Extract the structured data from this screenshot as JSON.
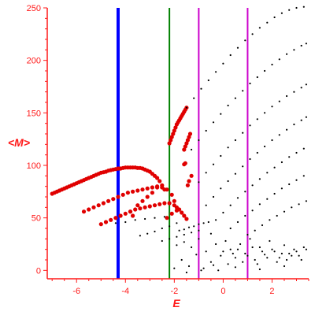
{
  "chart_data": {
    "type": "scatter",
    "title": "",
    "xlabel": "E",
    "ylabel": "<M>",
    "xlim": [
      -7.2,
      3.5
    ],
    "ylim": [
      -8,
      250
    ],
    "xticks": [
      -6,
      -4,
      -2,
      0,
      2
    ],
    "yticks": [
      0,
      50,
      100,
      150,
      200,
      250
    ],
    "x_tick_labels": [
      "-6",
      "-4",
      "-2",
      "0",
      "2"
    ],
    "y_tick_labels": [
      "0",
      "50",
      "100",
      "150",
      "200",
      "250"
    ],
    "grid": false,
    "legend": "none",
    "axis_color": "#ff1a1a",
    "vertical_lines": [
      {
        "x": -4.3,
        "color": "#0000ff"
      },
      {
        "x": -2.2,
        "color": "#008000"
      },
      {
        "x": -1.0,
        "color": "#cc00cc"
      },
      {
        "x": 1.0,
        "color": "#cc00cc"
      }
    ],
    "series": [
      {
        "color": "#e00000",
        "points": [
          [
            -7.0,
            73
          ],
          [
            -6.9,
            74
          ],
          [
            -6.8,
            75
          ],
          [
            -6.7,
            76
          ],
          [
            -6.6,
            77
          ],
          [
            -6.5,
            78
          ],
          [
            -6.4,
            79
          ],
          [
            -6.3,
            80
          ],
          [
            -6.2,
            81
          ],
          [
            -6.1,
            82
          ],
          [
            -6.0,
            83
          ],
          [
            -5.9,
            84
          ],
          [
            -5.8,
            85
          ],
          [
            -5.7,
            86
          ],
          [
            -5.6,
            87
          ],
          [
            -5.5,
            88
          ],
          [
            -5.4,
            89
          ],
          [
            -5.3,
            90
          ],
          [
            -5.2,
            91
          ],
          [
            -5.1,
            92
          ],
          [
            -5.0,
            93
          ],
          [
            -4.9,
            93.5
          ],
          [
            -4.8,
            94
          ],
          [
            -4.7,
            95
          ],
          [
            -4.6,
            95.5
          ],
          [
            -4.5,
            96
          ],
          [
            -4.4,
            96.5
          ],
          [
            -4.3,
            97
          ],
          [
            -4.2,
            97
          ],
          [
            -4.1,
            97.5
          ],
          [
            -4.0,
            98
          ],
          [
            -3.9,
            98
          ],
          [
            -3.8,
            98
          ],
          [
            -3.7,
            98
          ],
          [
            -3.6,
            98
          ],
          [
            -3.5,
            97.5
          ],
          [
            -3.4,
            97.5
          ],
          [
            -3.3,
            97
          ],
          [
            -3.2,
            96
          ],
          [
            -3.1,
            95
          ],
          [
            -3.0,
            94
          ],
          [
            -2.9,
            92
          ],
          [
            -2.8,
            90
          ],
          [
            -2.7,
            88
          ],
          [
            -2.6,
            85
          ],
          [
            -2.5,
            81
          ],
          [
            -2.4,
            77
          ],
          [
            -5.7,
            56
          ],
          [
            -5.5,
            58
          ],
          [
            -5.3,
            60
          ],
          [
            -5.1,
            62
          ],
          [
            -4.9,
            64
          ],
          [
            -4.7,
            66
          ],
          [
            -4.5,
            68
          ],
          [
            -4.3,
            70
          ],
          [
            -4.1,
            72
          ],
          [
            -3.9,
            74
          ],
          [
            -3.7,
            75
          ],
          [
            -3.5,
            76
          ],
          [
            -3.3,
            77
          ],
          [
            -3.1,
            78
          ],
          [
            -2.9,
            79
          ],
          [
            -2.7,
            79
          ],
          [
            -2.5,
            79
          ],
          [
            -2.3,
            77
          ],
          [
            -2.1,
            72
          ],
          [
            -2.0,
            66
          ],
          [
            -1.9,
            60
          ],
          [
            -5.0,
            44
          ],
          [
            -4.8,
            46
          ],
          [
            -4.6,
            48
          ],
          [
            -4.4,
            50
          ],
          [
            -4.2,
            52
          ],
          [
            -4.0,
            54
          ],
          [
            -3.8,
            56
          ],
          [
            -3.6,
            58
          ],
          [
            -3.4,
            59
          ],
          [
            -3.2,
            60
          ],
          [
            -3.0,
            61
          ],
          [
            -2.8,
            62
          ],
          [
            -2.6,
            63
          ],
          [
            -2.4,
            64
          ],
          [
            -2.2,
            64
          ],
          [
            -2.0,
            62
          ],
          [
            -1.8,
            58
          ],
          [
            -1.7,
            55
          ],
          [
            -1.6,
            52
          ],
          [
            -1.5,
            49
          ],
          [
            -3.5,
            62
          ],
          [
            -3.3,
            66
          ],
          [
            -3.1,
            70
          ],
          [
            -2.9,
            74
          ],
          [
            -2.7,
            80
          ],
          [
            -3.8,
            56
          ],
          [
            -3.7,
            52
          ],
          [
            -2.3,
            50
          ],
          [
            -2.1,
            54
          ],
          [
            -1.9,
            57
          ],
          [
            -2.2,
            121
          ],
          [
            -2.15,
            124
          ],
          [
            -2.1,
            127
          ],
          [
            -2.05,
            130
          ],
          [
            -2.0,
            133
          ],
          [
            -1.95,
            136
          ],
          [
            -1.9,
            139
          ],
          [
            -1.85,
            141
          ],
          [
            -1.8,
            143
          ],
          [
            -1.75,
            145
          ],
          [
            -1.7,
            147
          ],
          [
            -1.65,
            149
          ],
          [
            -1.6,
            151
          ],
          [
            -1.55,
            153
          ],
          [
            -1.5,
            155
          ],
          [
            -1.6,
            115
          ],
          [
            -1.55,
            118
          ],
          [
            -1.5,
            121
          ],
          [
            -1.45,
            124
          ],
          [
            -1.4,
            127
          ],
          [
            -1.35,
            130
          ],
          [
            -1.6,
            101
          ],
          [
            -1.55,
            102
          ],
          [
            -1.45,
            81
          ],
          [
            -1.4,
            85
          ],
          [
            -1.3,
            90
          ]
        ]
      },
      {
        "color": "#000000",
        "points": [
          [
            -1.5,
            155
          ],
          [
            -1.2,
            164
          ],
          [
            -0.9,
            173
          ],
          [
            -0.6,
            181
          ],
          [
            -0.3,
            189
          ],
          [
            0.0,
            197
          ],
          [
            0.3,
            205
          ],
          [
            0.6,
            212
          ],
          [
            0.9,
            219
          ],
          [
            1.2,
            225
          ],
          [
            1.5,
            231
          ],
          [
            1.8,
            236
          ],
          [
            2.1,
            241
          ],
          [
            2.4,
            245
          ],
          [
            2.7,
            248
          ],
          [
            3.0,
            250
          ],
          [
            3.3,
            251
          ],
          [
            -1.3,
            115
          ],
          [
            -1.0,
            124
          ],
          [
            -0.7,
            133
          ],
          [
            -0.4,
            141
          ],
          [
            -0.1,
            149
          ],
          [
            0.2,
            157
          ],
          [
            0.5,
            164
          ],
          [
            0.8,
            171
          ],
          [
            1.1,
            178
          ],
          [
            1.4,
            184
          ],
          [
            1.7,
            190
          ],
          [
            2.0,
            196
          ],
          [
            2.3,
            201
          ],
          [
            2.6,
            206
          ],
          [
            2.9,
            210
          ],
          [
            3.2,
            214
          ],
          [
            3.4,
            216
          ],
          [
            -1.0,
            84
          ],
          [
            -0.7,
            93
          ],
          [
            -0.4,
            101
          ],
          [
            -0.1,
            109
          ],
          [
            0.2,
            117
          ],
          [
            0.5,
            124
          ],
          [
            0.8,
            131
          ],
          [
            1.1,
            138
          ],
          [
            1.4,
            144
          ],
          [
            1.7,
            150
          ],
          [
            2.0,
            156
          ],
          [
            2.3,
            161
          ],
          [
            2.6,
            166
          ],
          [
            2.9,
            170
          ],
          [
            3.2,
            174
          ],
          [
            3.4,
            177
          ],
          [
            -0.7,
            62
          ],
          [
            -0.4,
            70
          ],
          [
            -0.1,
            78
          ],
          [
            0.2,
            85
          ],
          [
            0.5,
            92
          ],
          [
            0.8,
            99
          ],
          [
            1.1,
            106
          ],
          [
            1.4,
            112
          ],
          [
            1.7,
            118
          ],
          [
            2.0,
            124
          ],
          [
            2.3,
            129
          ],
          [
            2.6,
            134
          ],
          [
            2.9,
            139
          ],
          [
            3.2,
            143
          ],
          [
            3.4,
            146
          ],
          [
            -0.3,
            48
          ],
          [
            0.0,
            55
          ],
          [
            0.3,
            62
          ],
          [
            0.6,
            69
          ],
          [
            0.9,
            75
          ],
          [
            1.2,
            81
          ],
          [
            1.5,
            87
          ],
          [
            1.8,
            93
          ],
          [
            2.1,
            98
          ],
          [
            2.4,
            103
          ],
          [
            2.7,
            108
          ],
          [
            3.0,
            112
          ],
          [
            3.3,
            116
          ],
          [
            0.3,
            40
          ],
          [
            0.6,
            46
          ],
          [
            0.9,
            52
          ],
          [
            1.2,
            57
          ],
          [
            1.5,
            63
          ],
          [
            1.8,
            68
          ],
          [
            2.1,
            73
          ],
          [
            2.4,
            78
          ],
          [
            2.7,
            82
          ],
          [
            3.0,
            86
          ],
          [
            3.3,
            90
          ],
          [
            1.0,
            34
          ],
          [
            1.3,
            38
          ],
          [
            1.6,
            43
          ],
          [
            1.9,
            48
          ],
          [
            2.2,
            52
          ],
          [
            2.5,
            56
          ],
          [
            2.8,
            60
          ],
          [
            3.1,
            63
          ],
          [
            3.4,
            66
          ],
          [
            -4.4,
            45
          ],
          [
            -4.0,
            46
          ],
          [
            -3.6,
            48
          ],
          [
            -3.2,
            49
          ],
          [
            -2.8,
            50
          ],
          [
            -2.4,
            51
          ],
          [
            -3.4,
            33
          ],
          [
            -3.1,
            35
          ],
          [
            -2.8,
            37
          ],
          [
            -2.5,
            40
          ],
          [
            -2.2,
            42
          ],
          [
            -1.9,
            45
          ],
          [
            -2.5,
            28
          ],
          [
            -2.2,
            30
          ],
          [
            -1.9,
            32
          ],
          [
            -1.6,
            34
          ],
          [
            -1.3,
            36
          ],
          [
            -1.0,
            38
          ],
          [
            -1.8,
            38
          ],
          [
            -1.6,
            39
          ],
          [
            -1.4,
            41
          ],
          [
            -1.2,
            42
          ],
          [
            -1.0,
            44
          ],
          [
            -0.8,
            45
          ],
          [
            -0.6,
            46
          ],
          [
            -1.9,
            24
          ],
          [
            -1.6,
            27
          ],
          [
            -1.3,
            22
          ],
          [
            -1.0,
            30
          ],
          [
            -0.7,
            18
          ],
          [
            -0.5,
            35
          ],
          [
            -0.3,
            25
          ],
          [
            -0.1,
            14
          ],
          [
            0.1,
            28
          ],
          [
            0.3,
            20
          ],
          [
            0.5,
            12
          ],
          [
            0.7,
            25
          ],
          [
            0.9,
            16
          ],
          [
            1.1,
            30
          ],
          [
            1.3,
            10
          ],
          [
            1.5,
            22
          ],
          [
            1.7,
            15
          ],
          [
            1.9,
            28
          ],
          [
            2.1,
            18
          ],
          [
            2.3,
            12
          ],
          [
            2.5,
            24
          ],
          [
            2.7,
            16
          ],
          [
            2.9,
            20
          ],
          [
            3.1,
            14
          ],
          [
            3.3,
            22
          ],
          [
            -1.7,
            10
          ],
          [
            -1.4,
            4
          ],
          [
            -1.1,
            15
          ],
          [
            -0.8,
            2
          ],
          [
            -0.5,
            8
          ],
          [
            -0.2,
            0
          ],
          [
            0.0,
            18
          ],
          [
            0.2,
            6
          ],
          [
            0.4,
            16
          ],
          [
            0.6,
            20
          ],
          [
            0.8,
            8
          ],
          [
            1.0,
            14
          ],
          [
            1.2,
            22
          ],
          [
            1.4,
            6
          ],
          [
            1.6,
            18
          ],
          [
            1.8,
            12
          ],
          [
            2.0,
            20
          ],
          [
            2.2,
            8
          ],
          [
            2.4,
            16
          ],
          [
            2.6,
            10
          ],
          [
            2.8,
            14
          ],
          [
            3.0,
            18
          ],
          [
            3.2,
            10
          ],
          [
            3.4,
            20
          ],
          [
            -2.0,
            2
          ],
          [
            -1.5,
            -2
          ],
          [
            -0.9,
            0
          ],
          [
            -0.4,
            5
          ],
          [
            0.5,
            3
          ],
          [
            1.5,
            1
          ],
          [
            2.5,
            4
          ]
        ]
      }
    ]
  }
}
